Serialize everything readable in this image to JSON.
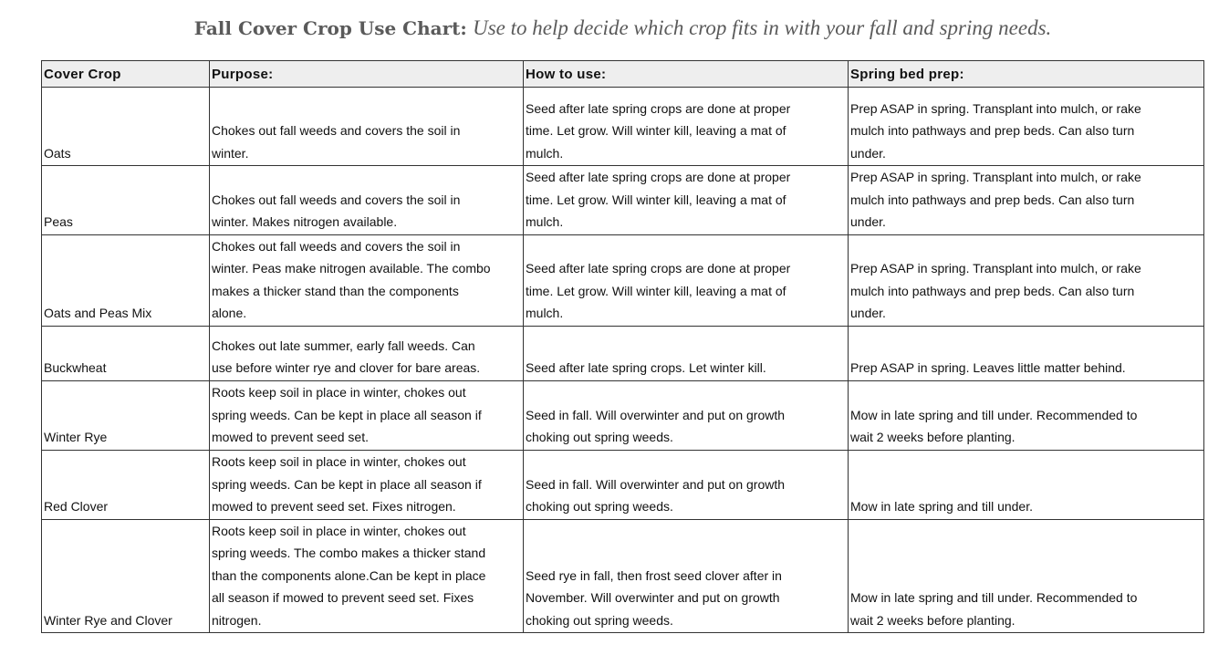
{
  "title": {
    "bold": "Fall Cover Crop Use Chart:",
    "italic": "Use to help decide which crop fits in with your fall and spring needs."
  },
  "table": {
    "headers": [
      "Cover Crop",
      "Purpose:",
      "How to use:",
      "Spring bed prep:"
    ],
    "rows": [
      {
        "crop": "Oats",
        "purpose": "Chokes out fall weeds and covers the soil in\nwinter.",
        "how": "Seed after late spring crops are done at proper\ntime. Let grow. Will winter kill, leaving a mat of\nmulch.",
        "prep": "Prep ASAP in spring. Transplant into mulch, or rake\nmulch into pathways and prep beds. Can also turn\nunder."
      },
      {
        "crop": "Peas",
        "purpose": "Chokes out fall weeds and covers the soil in\nwinter. Makes nitrogen available.",
        "how": "Seed after late spring crops are done at proper\ntime. Let grow. Will winter kill, leaving a mat of\nmulch.",
        "prep": "Prep ASAP in spring. Transplant into mulch, or rake\nmulch into pathways and prep beds. Can also turn\nunder."
      },
      {
        "crop": "Oats and Peas Mix",
        "purpose": "Chokes out fall weeds and covers the soil in\nwinter. Peas make nitrogen available. The combo\nmakes a thicker stand than the components\nalone.",
        "how": "Seed after late spring crops are done at proper\ntime. Let grow. Will winter kill, leaving a mat of\nmulch.",
        "prep": "Prep ASAP in spring. Transplant into mulch, or rake\nmulch into pathways and prep beds. Can also turn\nunder."
      },
      {
        "crop": "Buckwheat",
        "purpose": "Chokes out late summer, early fall weeds. Can\nuse before winter rye and clover for bare areas.",
        "how": "Seed after late spring crops. Let winter kill.",
        "prep": "Prep ASAP in spring. Leaves little matter behind."
      },
      {
        "crop": "Winter Rye",
        "purpose": "Roots keep soil in place in winter, chokes out\nspring weeds. Can be kept in place all season if\nmowed to prevent seed set.",
        "how": "Seed in fall. Will overwinter and put on growth\nchoking out spring weeds.",
        "prep": "Mow in late spring and till under. Recommended to\nwait 2 weeks before planting."
      },
      {
        "crop": "Red Clover",
        "purpose": "Roots keep soil in place in winter, chokes out\nspring weeds. Can be kept in place all season if\nmowed to prevent seed set. Fixes nitrogen.",
        "how": "Seed in fall. Will overwinter and put on growth\nchoking out spring weeds.",
        "prep": "Mow in late spring and till under."
      },
      {
        "crop": "Winter Rye and Clover",
        "purpose": "Roots keep soil in place in winter, chokes out\nspring weeds. The combo makes a thicker stand\nthan the components alone.Can be kept in place\nall season if mowed to prevent seed set. Fixes\nnitrogen.",
        "how": "Seed rye in fall, then frost seed clover after in\nNovember. Will overwinter and put on growth\nchoking out spring weeds.",
        "prep": "Mow in late spring and till under. Recommended to\nwait 2 weeks before planting."
      }
    ]
  }
}
